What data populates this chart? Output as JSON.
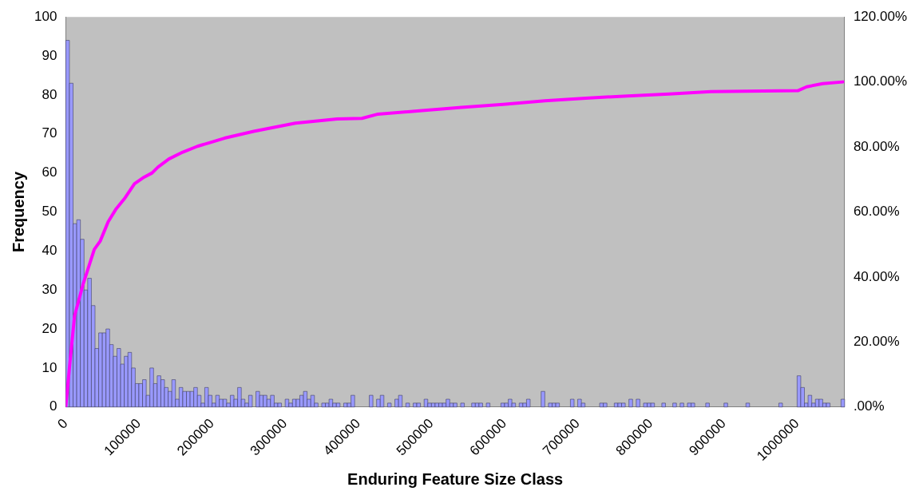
{
  "chart_data": {
    "type": "histogram",
    "xlabel": "Enduring Feature Size Class",
    "ylabel": "Frequency",
    "bins": [
      0,
      5000,
      10000,
      15000,
      20000,
      25000,
      30000,
      35000,
      40000,
      45000,
      50000,
      55000,
      60000,
      65000,
      70000,
      75000,
      80000,
      85000,
      90000,
      95000,
      100000,
      105000,
      110000,
      115000,
      120000,
      125000,
      130000,
      135000,
      140000,
      145000,
      150000,
      155000,
      160000,
      165000,
      170000,
      175000,
      180000,
      185000,
      190000,
      195000,
      200000,
      205000,
      210000,
      215000,
      220000,
      225000,
      230000,
      235000,
      240000,
      245000,
      250000,
      255000,
      260000,
      265000,
      270000,
      275000,
      280000,
      285000,
      290000,
      295000,
      300000,
      305000,
      310000,
      315000,
      320000,
      325000,
      330000,
      335000,
      340000,
      345000,
      350000,
      355000,
      360000,
      365000,
      370000,
      375000,
      380000,
      385000,
      390000,
      395000,
      400000,
      405000,
      410000,
      415000,
      420000,
      425000,
      430000,
      435000,
      440000,
      445000,
      450000,
      455000,
      460000,
      465000,
      470000,
      475000,
      480000,
      485000,
      490000,
      495000,
      500000,
      505000,
      510000,
      515000,
      520000,
      525000,
      530000,
      535000,
      540000,
      545000,
      550000,
      555000,
      560000,
      565000,
      570000,
      575000,
      580000,
      585000,
      590000,
      595000,
      600000,
      605000,
      610000,
      615000,
      620000,
      625000,
      630000,
      635000,
      640000,
      645000,
      650000,
      655000,
      660000,
      665000,
      670000,
      675000,
      680000,
      685000,
      690000,
      695000,
      700000,
      705000,
      710000,
      715000,
      720000,
      725000,
      730000,
      735000,
      740000,
      745000,
      750000,
      755000,
      760000,
      765000,
      770000,
      775000,
      780000,
      785000,
      790000,
      795000,
      800000,
      805000,
      810000,
      815000,
      820000,
      825000,
      830000,
      835000,
      840000,
      845000,
      850000,
      855000,
      860000,
      865000,
      870000,
      875000,
      880000,
      885000,
      890000,
      895000,
      900000,
      905000,
      910000,
      915000,
      920000,
      925000,
      930000,
      935000,
      940000,
      945000,
      950000,
      955000,
      960000,
      965000,
      970000,
      975000,
      980000,
      985000,
      990000,
      995000,
      1000000,
      1005000,
      1010000,
      1015000,
      1020000,
      1025000,
      1030000,
      1035000,
      1040000,
      1045000,
      1050000,
      1055000,
      1060000,
      1065000
    ],
    "values": [
      94,
      83,
      47,
      48,
      43,
      30,
      33,
      26,
      15,
      19,
      19,
      20,
      16,
      13,
      15,
      11,
      13,
      14,
      10,
      6,
      6,
      7,
      3,
      10,
      6,
      8,
      7,
      5,
      4,
      7,
      2,
      5,
      4,
      4,
      4,
      5,
      3,
      1,
      5,
      3,
      1,
      3,
      2,
      2,
      1,
      3,
      2,
      5,
      2,
      1,
      3,
      0,
      4,
      3,
      3,
      2,
      3,
      1,
      1,
      0,
      2,
      1,
      2,
      2,
      3,
      4,
      2,
      3,
      1,
      0,
      1,
      1,
      2,
      1,
      1,
      0,
      1,
      1,
      3,
      0,
      0,
      0,
      0,
      3,
      0,
      2,
      3,
      0,
      1,
      0,
      2,
      3,
      0,
      1,
      0,
      1,
      1,
      0,
      2,
      1,
      1,
      1,
      1,
      1,
      2,
      1,
      1,
      0,
      1,
      0,
      0,
      1,
      1,
      1,
      0,
      1,
      0,
      0,
      0,
      1,
      1,
      2,
      1,
      0,
      1,
      1,
      2,
      0,
      0,
      0,
      4,
      0,
      1,
      1,
      1,
      0,
      0,
      0,
      2,
      0,
      2,
      1,
      0,
      0,
      0,
      0,
      1,
      1,
      0,
      0,
      1,
      1,
      1,
      0,
      2,
      0,
      2,
      0,
      1,
      1,
      1,
      0,
      0,
      1,
      0,
      0,
      1,
      0,
      1,
      0,
      1,
      1,
      0,
      0,
      0,
      1,
      0,
      0,
      0,
      0,
      1,
      0,
      0,
      0,
      0,
      0,
      1,
      0,
      0,
      0,
      0,
      0,
      0,
      0,
      0,
      1,
      0,
      0,
      0,
      0,
      8,
      5,
      1,
      3,
      1,
      2,
      2,
      1,
      1,
      0,
      0,
      0,
      2
    ],
    "color": "#9999ff",
    "series": [
      {
        "type": "line",
        "axis": "y2",
        "color": "#ff00ff",
        "x": [
          0,
          5000,
          12000,
          24000,
          39000,
          47000,
          58000,
          69000,
          81000,
          94000,
          107000,
          118000,
          126000,
          141000,
          160000,
          180000,
          198000,
          217000,
          257000,
          314000,
          371000,
          405000,
          427000,
          484000,
          541000,
          598000,
          655000,
          711000,
          768000,
          825000,
          882000,
          1001000,
          1013000,
          1035000,
          1062500
        ],
        "values": [
          0,
          12,
          28,
          38,
          48.5,
          51,
          57,
          61,
          64.3,
          68.7,
          70.7,
          72,
          73.8,
          76.3,
          78.4,
          80.2,
          81.4,
          82.7,
          84.8,
          87.3,
          88.6,
          88.8,
          90.1,
          91.1,
          92.2,
          93.1,
          94.2,
          95,
          95.7,
          96.3,
          97,
          97.3,
          98.5,
          99.5,
          100
        ]
      }
    ],
    "xlim": [
      0,
      1065000
    ],
    "xticks": [
      0,
      100000,
      200000,
      300000,
      400000,
      500000,
      600000,
      700000,
      800000,
      900000,
      1000000
    ],
    "ylim": [
      0,
      100
    ],
    "yticks": [
      0,
      10,
      20,
      30,
      40,
      50,
      60,
      70,
      80,
      90,
      100
    ],
    "y2lim": [
      0,
      120
    ],
    "y2ticks": [
      {
        "value": 0,
        "label": ".00%"
      },
      {
        "value": 20,
        "label": "20.00%"
      },
      {
        "value": 40,
        "label": "40.00%"
      },
      {
        "value": 60,
        "label": "60.00%"
      },
      {
        "value": 80,
        "label": "80.00%"
      },
      {
        "value": 100,
        "label": "100.00%"
      },
      {
        "value": 120,
        "label": "120.00%"
      }
    ],
    "grid": false,
    "legend": false
  }
}
